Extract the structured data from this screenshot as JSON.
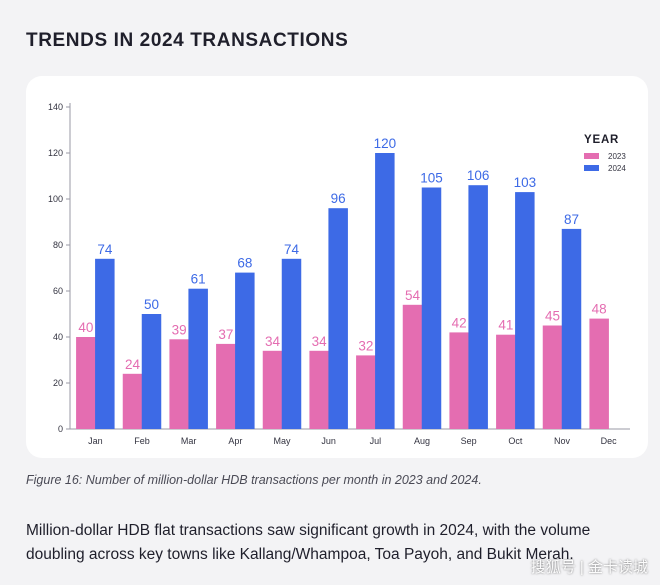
{
  "heading": "TRENDS IN 2024 TRANSACTIONS",
  "caption": "Figure 16: Number of million-dollar HDB transactions per month in 2023 and 2024.",
  "body_text": "Million-dollar HDB flat transactions saw significant growth in 2024, with the volume doubling across key towns like Kallang/Whampoa, Toa Payoh, and Bukit Merah.",
  "watermark": "搜狐号 | 金卡读城",
  "colors": {
    "series_2023": "#e46db1",
    "series_2024": "#3d6ae6"
  },
  "chart_data": {
    "type": "bar",
    "title": "",
    "xlabel": "",
    "ylabel": "",
    "ylim": [
      0,
      140
    ],
    "yticks": [
      0,
      20,
      40,
      60,
      80,
      100,
      120,
      140
    ],
    "categories": [
      "Jan",
      "Feb",
      "Mar",
      "Apr",
      "May",
      "Jun",
      "Jul",
      "Aug",
      "Sep",
      "Oct",
      "Nov",
      "Dec"
    ],
    "legend_title": "YEAR",
    "legend_position": "top-right",
    "series": [
      {
        "name": "2023",
        "values": [
          40,
          24,
          39,
          37,
          34,
          34,
          32,
          54,
          42,
          41,
          45,
          48
        ]
      },
      {
        "name": "2024",
        "values": [
          74,
          50,
          61,
          68,
          74,
          96,
          120,
          105,
          106,
          103,
          87,
          null
        ]
      }
    ]
  }
}
